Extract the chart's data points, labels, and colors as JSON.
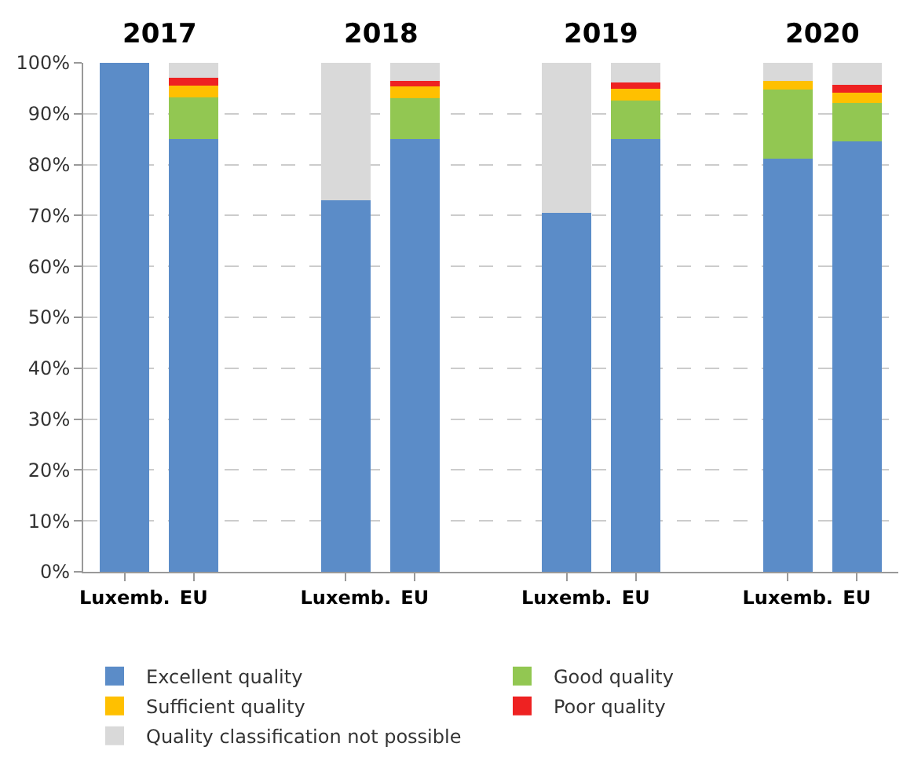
{
  "chart_data": {
    "type": "bar",
    "stacked": true,
    "categories": [
      "Luxemb.",
      "EU",
      "Luxemb.",
      "EU",
      "Luxemb.",
      "EU",
      "Luxemb.",
      "EU"
    ],
    "series": [
      {
        "name": "Excellent quality",
        "color": "#5b8cc8",
        "values": [
          100,
          85,
          73,
          85,
          70.5,
          85,
          81.1,
          84.6
        ]
      },
      {
        "name": "Good quality",
        "color": "#92c752",
        "values": [
          0,
          8.2,
          0,
          8,
          0,
          7.6,
          13.6,
          7.6
        ]
      },
      {
        "name": "Sufficient quality",
        "color": "#ffc000",
        "values": [
          0,
          2.3,
          0,
          2.3,
          0,
          2.3,
          1.7,
          2
        ]
      },
      {
        "name": "Poor quality",
        "color": "#ee2222",
        "values": [
          0,
          1.6,
          0,
          1.2,
          0,
          1.2,
          0,
          1.5
        ]
      },
      {
        "name": "Quality classification not possible",
        "color": "#d9d9d9",
        "values": [
          0,
          2.9,
          27,
          3.5,
          29.5,
          3.9,
          3.6,
          4.3
        ]
      }
    ],
    "annotations": [
      "2017",
      "2018",
      "2019",
      "2020"
    ],
    "ylim": [
      0,
      100
    ],
    "yticks": [
      {
        "value": 0,
        "label": "0%"
      },
      {
        "value": 10,
        "label": "10%"
      },
      {
        "value": 20,
        "label": "20%"
      },
      {
        "value": 30,
        "label": "30%"
      },
      {
        "value": 40,
        "label": "40%"
      },
      {
        "value": 50,
        "label": "50%"
      },
      {
        "value": 60,
        "label": "60%"
      },
      {
        "value": 70,
        "label": "70%"
      },
      {
        "value": 80,
        "label": "80%"
      },
      {
        "value": 90,
        "label": "90%"
      },
      {
        "value": 100,
        "label": "100%"
      }
    ],
    "grid": "y",
    "legend": "bottom"
  }
}
